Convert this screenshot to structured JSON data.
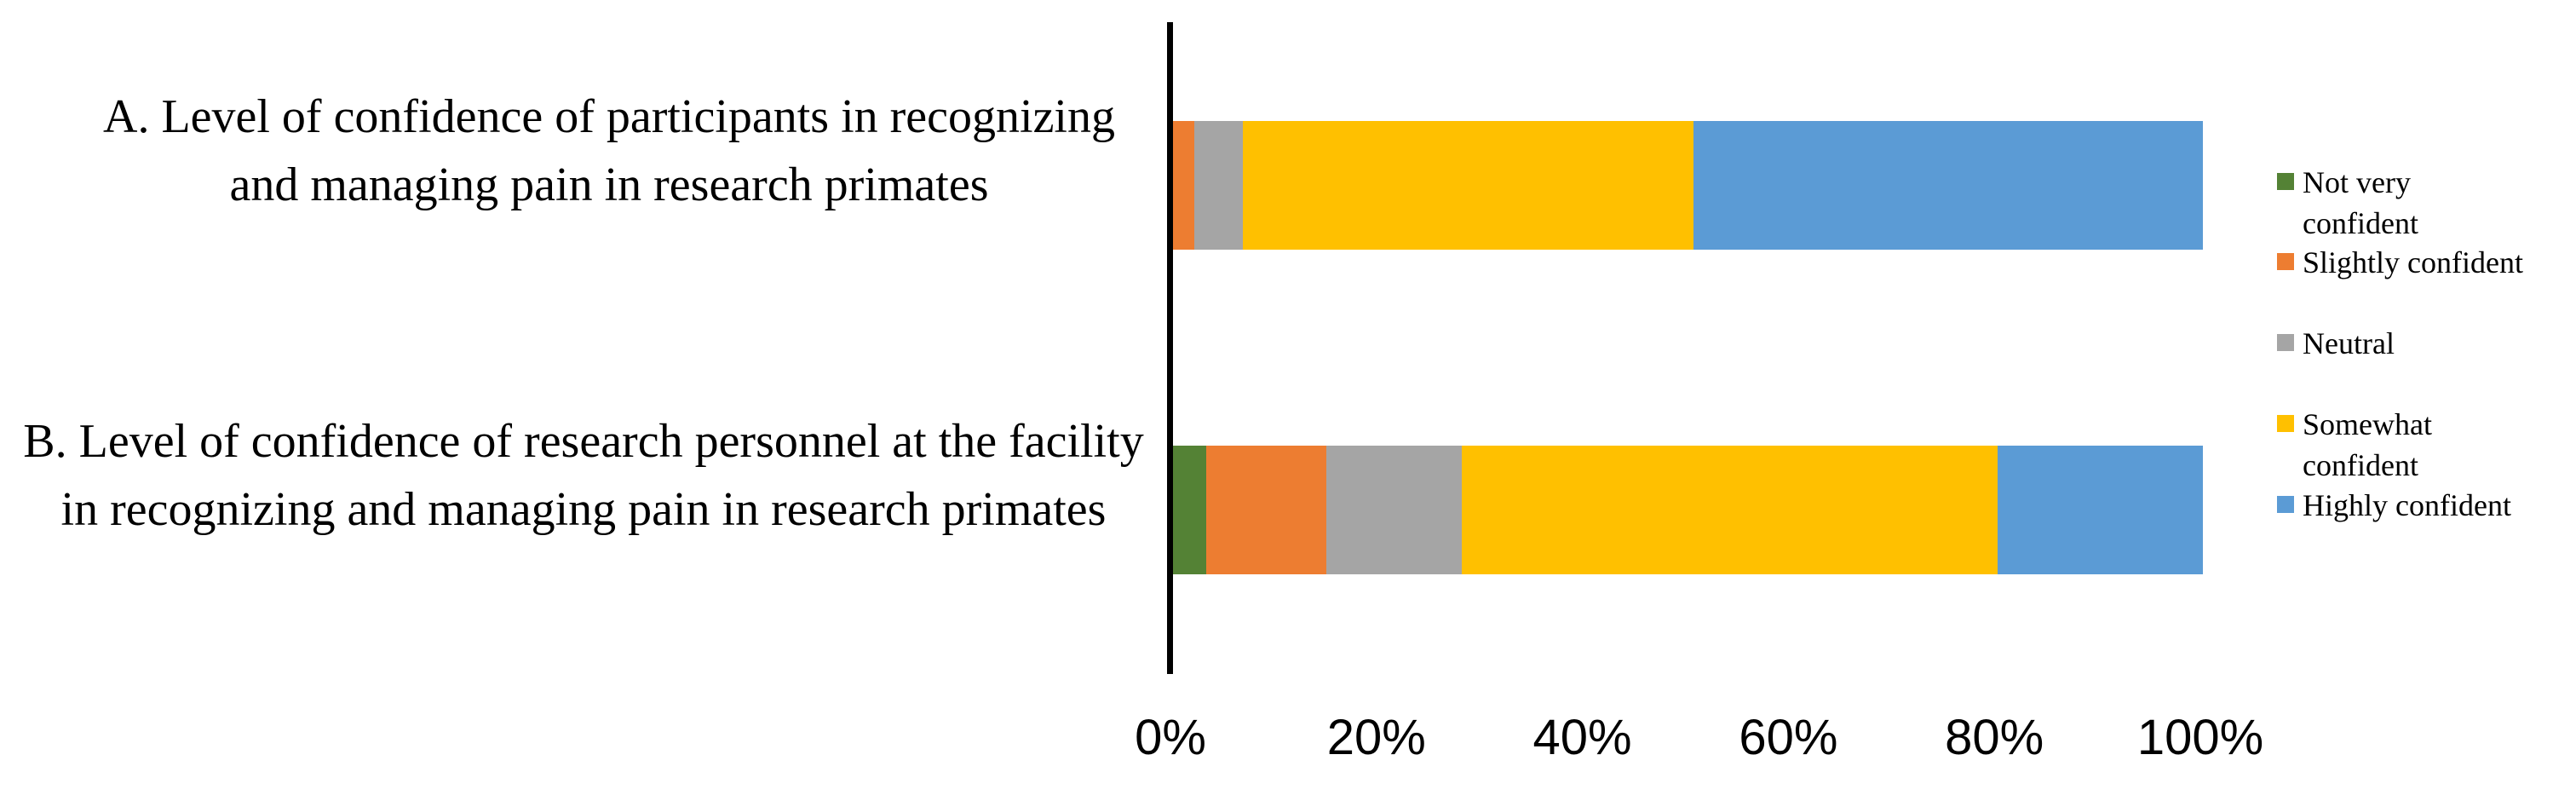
{
  "figure": {
    "background": "#FFFFFF",
    "axis_color": "#000000"
  },
  "chart_data": {
    "type": "bar",
    "orientation": "horizontal",
    "stacked": true,
    "unit": "percent",
    "title": "",
    "xlabel": "",
    "ylabel": "",
    "xlim": [
      0,
      100
    ],
    "x_ticks": [
      "0%",
      "20%",
      "40%",
      "60%",
      "80%",
      "100%"
    ],
    "grid": false,
    "legend_position": "right",
    "categories": [
      "A. Level of confidence of participants in recognizing and managing pain in research primates",
      "B. Level of confidence of research personnel at the facility in recognizing and managing pain in research primates"
    ],
    "series": [
      {
        "name": "Not very confident",
        "color": "#548235",
        "values": [
          0,
          3.2
        ]
      },
      {
        "name": "Slightly confident",
        "color": "#ED7D31",
        "values": [
          2.1,
          11.7
        ]
      },
      {
        "name": "Neutral",
        "color": "#A5A5A5",
        "values": [
          4.7,
          13.1
        ]
      },
      {
        "name": "Somewhat confident",
        "color": "#FFC000",
        "values": [
          43.7,
          52.1
        ]
      },
      {
        "name": "Highly confident",
        "color": "#5B9BD5",
        "values": [
          49.5,
          19.9
        ]
      }
    ]
  },
  "legend": {
    "items": [
      {
        "lines": [
          "Not very",
          "confident"
        ]
      },
      {
        "lines": [
          "Slightly confident"
        ]
      },
      {
        "lines": [
          "Neutral"
        ]
      },
      {
        "lines": [
          "Somewhat",
          "confident"
        ]
      },
      {
        "lines": [
          "Highly confident"
        ]
      }
    ]
  }
}
